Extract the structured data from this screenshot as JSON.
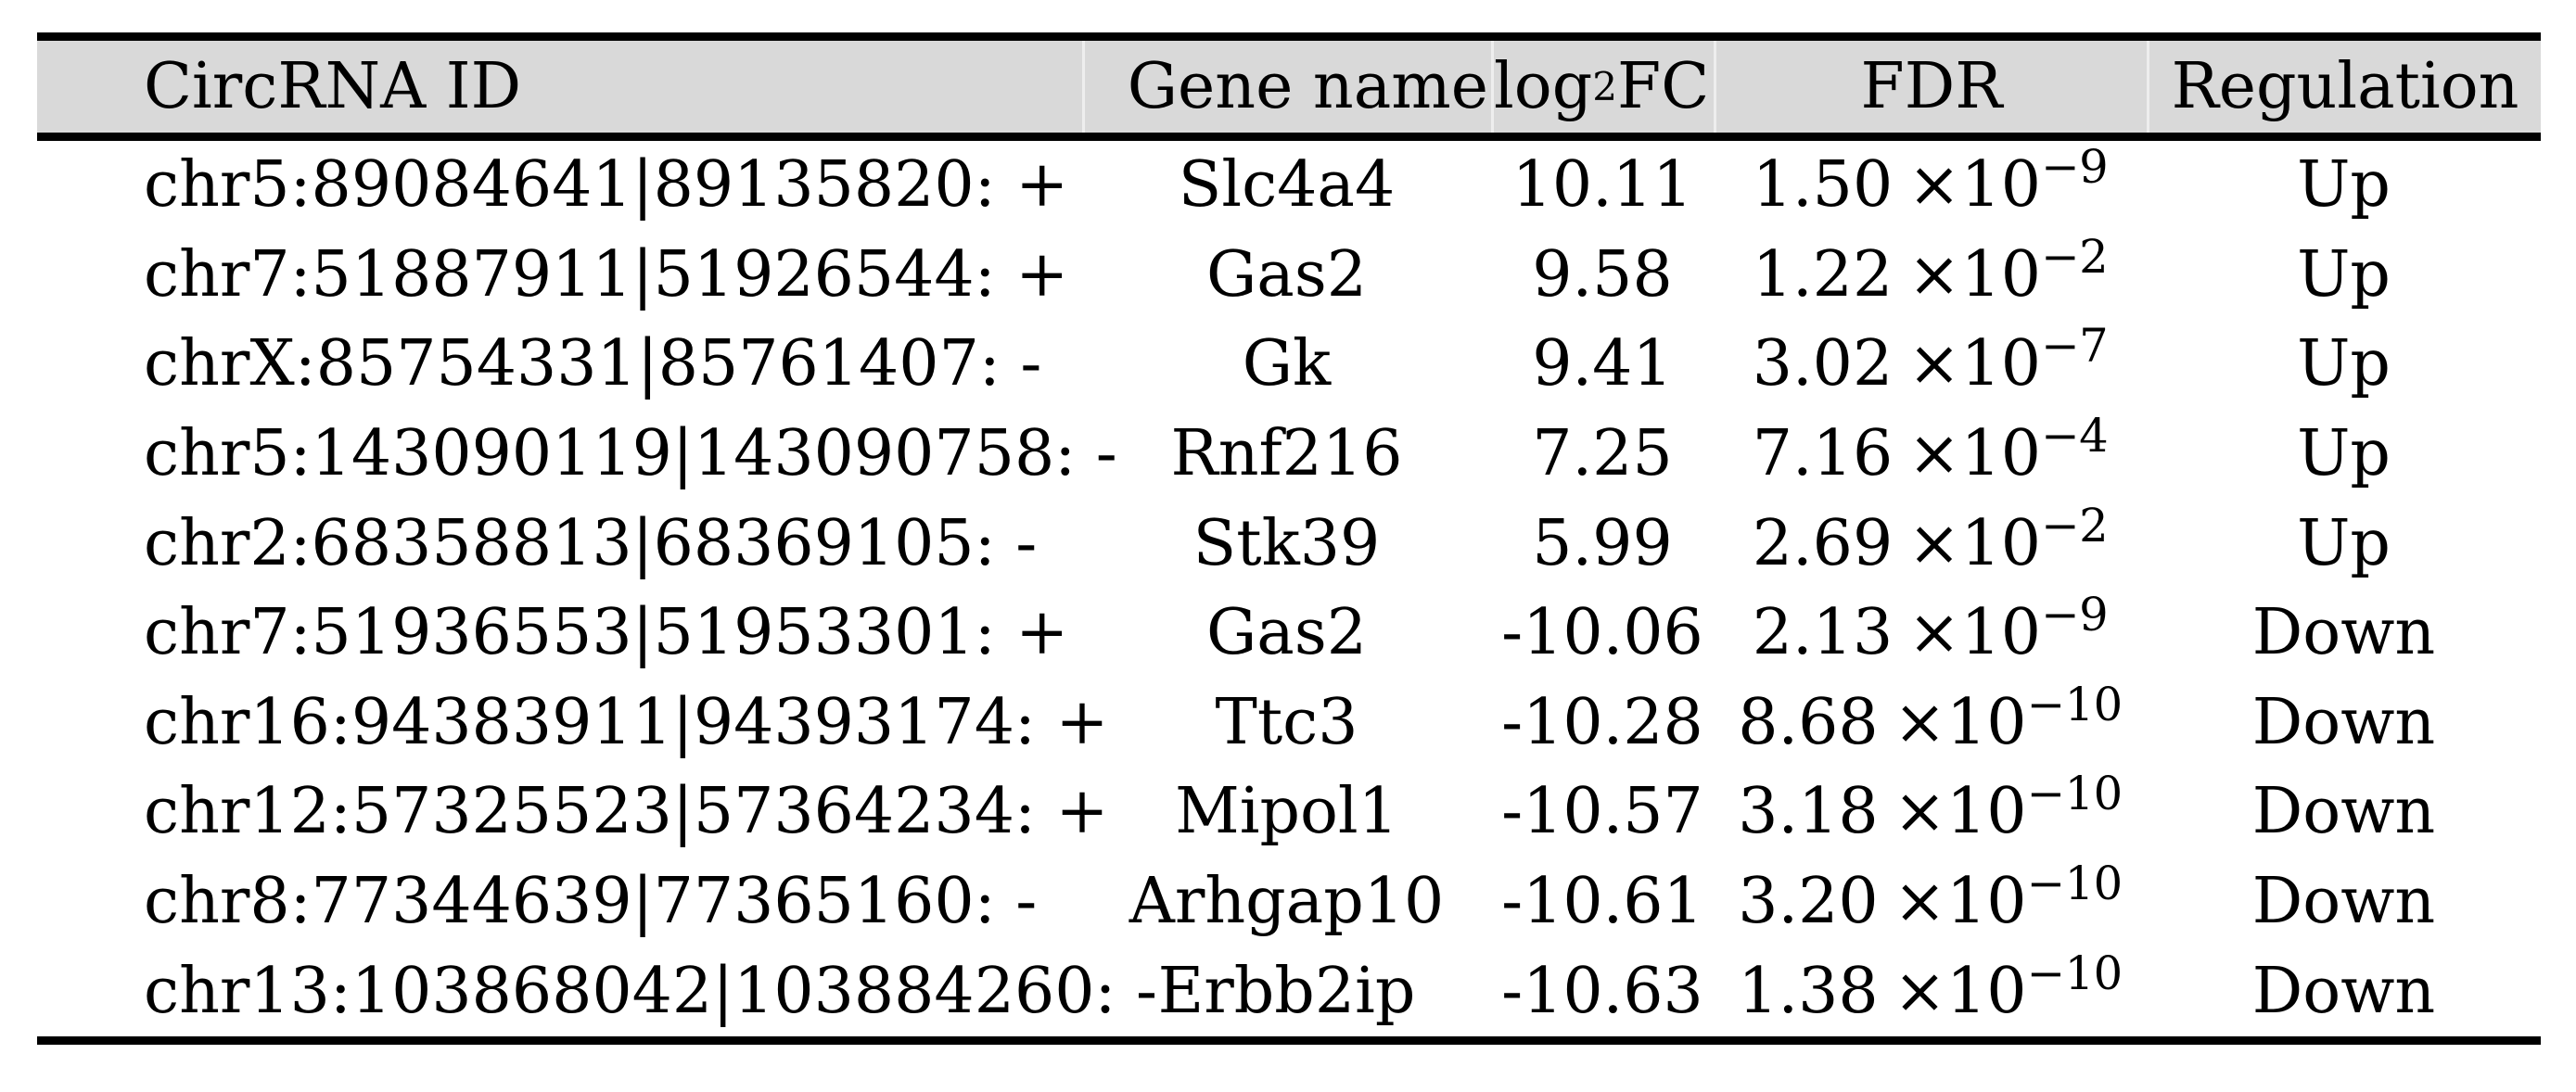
{
  "page": {
    "background_color": "#ffffff",
    "text_color": "#000000"
  },
  "table": {
    "style": {
      "header_background": "#d9d9d9",
      "rule_color": "#000000",
      "divider_color": "#eeeeee"
    },
    "headers": {
      "circrna_id": "CircRNA ID",
      "gene_name": "Gene name",
      "log2fc_pre": "log",
      "log2fc_sub": "2",
      "log2fc_post": "FC",
      "fdr": "FDR",
      "regulation": "Regulation"
    },
    "format": {
      "times": "×10"
    },
    "rows": [
      {
        "id": "chr5:89084641|89135820: +",
        "gene": "Slc4a4",
        "log2fc": "10.11",
        "fdr_mantissa": "1.50",
        "fdr_exponent": "−9",
        "regulation": "Up"
      },
      {
        "id": "chr7:51887911|51926544: +",
        "gene": "Gas2",
        "log2fc": "9.58",
        "fdr_mantissa": "1.22",
        "fdr_exponent": "−2",
        "regulation": "Up"
      },
      {
        "id": "chrX:85754331|85761407: -",
        "gene": "Gk",
        "log2fc": "9.41",
        "fdr_mantissa": "3.02",
        "fdr_exponent": "−7",
        "regulation": "Up"
      },
      {
        "id": "chr5:143090119|143090758: -",
        "gene": "Rnf216",
        "log2fc": "7.25",
        "fdr_mantissa": "7.16",
        "fdr_exponent": "−4",
        "regulation": "Up"
      },
      {
        "id": "chr2:68358813|68369105: -",
        "gene": "Stk39",
        "log2fc": "5.99",
        "fdr_mantissa": "2.69",
        "fdr_exponent": "−2",
        "regulation": "Up"
      },
      {
        "id": "chr7:51936553|51953301: +",
        "gene": "Gas2",
        "log2fc": "-10.06",
        "fdr_mantissa": "2.13",
        "fdr_exponent": "−9",
        "regulation": "Down"
      },
      {
        "id": "chr16:94383911|94393174: +",
        "gene": "Ttc3",
        "log2fc": "-10.28",
        "fdr_mantissa": "8.68",
        "fdr_exponent": "−10",
        "regulation": "Down"
      },
      {
        "id": "chr12:57325523|57364234: +",
        "gene": "Mipol1",
        "log2fc": "-10.57",
        "fdr_mantissa": "3.18",
        "fdr_exponent": "−10",
        "regulation": "Down"
      },
      {
        "id": "chr8:77344639|77365160: -",
        "gene": "Arhgap10",
        "log2fc": "-10.61",
        "fdr_mantissa": "3.20",
        "fdr_exponent": "−10",
        "regulation": "Down"
      },
      {
        "id": "chr13:103868042|103884260: -",
        "gene": "Erbb2ip",
        "log2fc": "-10.63",
        "fdr_mantissa": "1.38",
        "fdr_exponent": "−10",
        "regulation": "Down"
      }
    ]
  }
}
